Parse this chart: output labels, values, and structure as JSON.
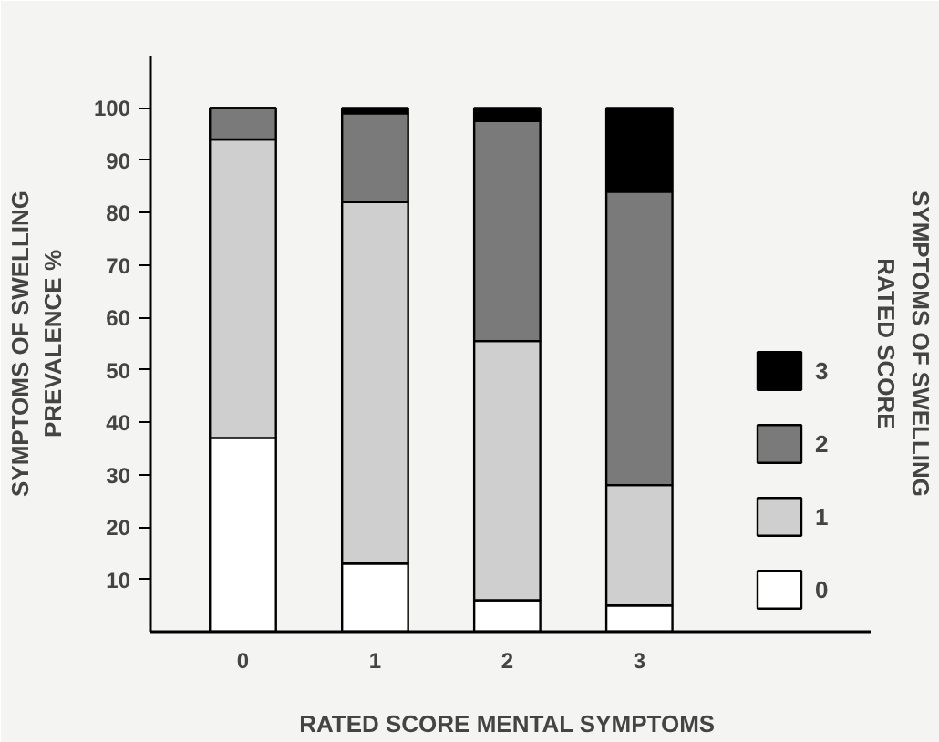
{
  "chart_data": {
    "type": "bar",
    "stacked": true,
    "xlabel": "RATED SCORE  MENTAL SYMPTOMS",
    "ylabel": "SYMPTOMS OF SWELLING\nPREVALENCE %",
    "legend_title": "RATED SCORE\nSYMPTOMS OF SWELLING",
    "categories": [
      "0",
      "1",
      "2",
      "3"
    ],
    "series": [
      {
        "name": "0",
        "color": "#ffffff",
        "values": [
          37,
          13,
          6,
          5
        ]
      },
      {
        "name": "1",
        "color": "#cfcfcf",
        "values": [
          57,
          69,
          49.5,
          23
        ]
      },
      {
        "name": "2",
        "color": "#7a7a7a",
        "values": [
          6,
          17,
          42,
          56
        ]
      },
      {
        "name": "3",
        "color": "#000000",
        "values": [
          0,
          1,
          2.5,
          16
        ]
      }
    ],
    "ylim": [
      0,
      110
    ],
    "yticks": [
      10,
      20,
      30,
      40,
      50,
      60,
      70,
      80,
      90,
      100
    ],
    "grid": false,
    "legend": "right"
  }
}
